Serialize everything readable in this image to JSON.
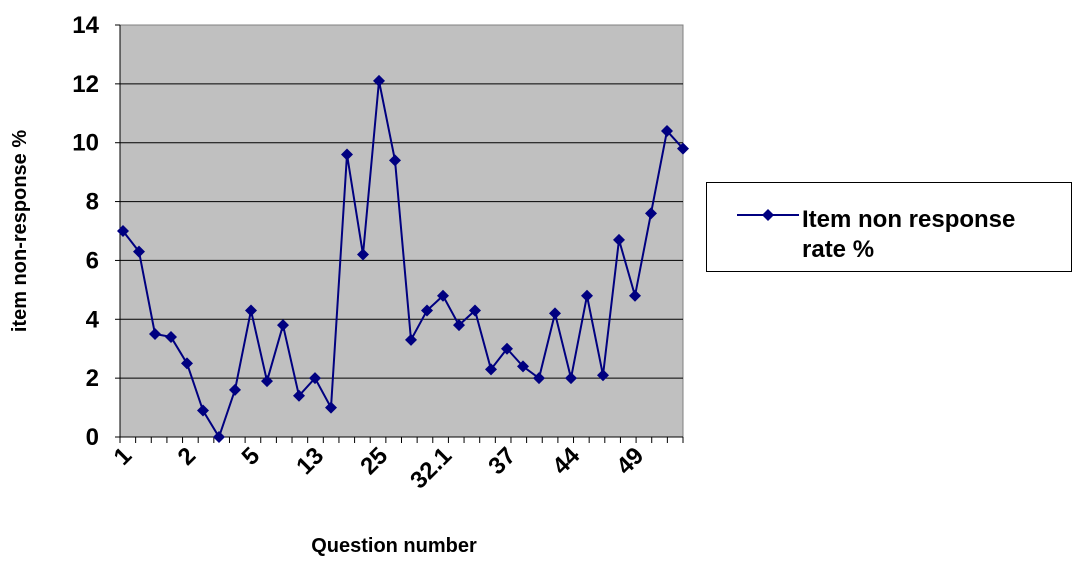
{
  "chart_data": {
    "type": "line",
    "xlabel": "Question number",
    "ylabel": "item non-response %",
    "ylim": [
      0,
      14
    ],
    "yticks": [
      "0",
      "2",
      "4",
      "6",
      "8",
      "10",
      "12",
      "14"
    ],
    "xtick_labels": [
      "1",
      "2",
      "5",
      "13",
      "25",
      "32.1",
      "37",
      "44",
      "49"
    ],
    "grid": true,
    "legend_position": "right",
    "plot_background": "#C0C0C0",
    "series": [
      {
        "name": "Item non response rate %",
        "color": "#000080",
        "marker": "diamond",
        "values": [
          7.0,
          6.3,
          3.5,
          3.4,
          2.5,
          0.9,
          0.0,
          1.6,
          4.3,
          1.9,
          3.8,
          1.4,
          2.0,
          1.0,
          9.6,
          6.2,
          12.1,
          9.4,
          3.3,
          4.3,
          4.8,
          3.8,
          4.3,
          2.3,
          3.0,
          2.4,
          2.0,
          4.2,
          2.0,
          4.8,
          2.1,
          6.7,
          4.8,
          7.6,
          10.4,
          9.8
        ]
      }
    ]
  }
}
